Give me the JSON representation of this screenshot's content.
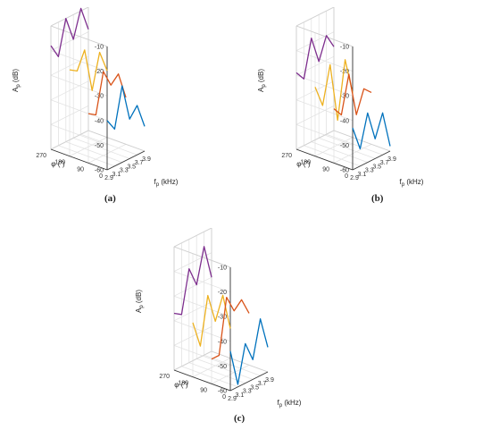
{
  "chart_data": [
    {
      "type": "line",
      "panel_caption": "(a)",
      "zlabel": "A",
      "zlabel_sub": "p",
      "zlabel_unit": " (dB)",
      "xlabel": "f",
      "xlabel_sub": "p",
      "xlabel_unit": " (kHz)",
      "ylabel": "φ (˚)",
      "x_ticks": [
        "2.9",
        "3.1",
        "3.3",
        "3.5",
        "3.7",
        "3.9"
      ],
      "y_ticks": [
        "0",
        "90",
        "180",
        "270"
      ],
      "z_ticks": [
        "-60",
        "-50",
        "-40",
        "-30",
        "-20",
        "-10"
      ],
      "xlim": [
        2.9,
        3.9
      ],
      "ylim": [
        0,
        270
      ],
      "zlim": [
        -60,
        -10
      ],
      "grid": true,
      "x": [
        2.9,
        3.1,
        3.3,
        3.5,
        3.7,
        3.9
      ],
      "series": [
        {
          "phi": 0,
          "color": "#0072bd",
          "z": [
            -40,
            -45,
            -29,
            -44,
            -40,
            -50
          ]
        },
        {
          "phi": 90,
          "color": "#d95319",
          "z": [
            -40,
            -42,
            -26,
            -33,
            -30,
            -41
          ]
        },
        {
          "phi": 180,
          "color": "#edb120",
          "z": [
            -25,
            -27,
            -20,
            -38,
            -24,
            -33
          ]
        },
        {
          "phi": 270,
          "color": "#7e2f8e",
          "z": [
            -18,
            -24,
            -10,
            -20,
            -9,
            -19
          ]
        }
      ]
    },
    {
      "type": "line",
      "panel_caption": "(b)",
      "zlabel": "A",
      "zlabel_sub": "p",
      "zlabel_unit": " (dB)",
      "xlabel": "f",
      "xlabel_sub": "p",
      "xlabel_unit": " (kHz)",
      "ylabel": "φ (˚)",
      "x_ticks": [
        "2.9",
        "3.1",
        "3.3",
        "3.5",
        "3.7",
        "3.9"
      ],
      "y_ticks": [
        "0",
        "90",
        "180",
        "270"
      ],
      "z_ticks": [
        "-60",
        "-50",
        "-40",
        "-30",
        "-20",
        "-10"
      ],
      "xlim": [
        2.9,
        3.9
      ],
      "ylim": [
        0,
        270
      ],
      "zlim": [
        -60,
        -10
      ],
      "grid": true,
      "x": [
        2.9,
        3.1,
        3.3,
        3.5,
        3.7,
        3.9
      ],
      "series": [
        {
          "phi": 0,
          "color": "#0072bd",
          "z": [
            -43,
            -53,
            -40,
            -52,
            -43,
            -58
          ]
        },
        {
          "phi": 90,
          "color": "#d95319",
          "z": [
            -38,
            -42,
            -27,
            -45,
            -36,
            -39
          ]
        },
        {
          "phi": 180,
          "color": "#edb120",
          "z": [
            -32,
            -41,
            -26,
            -50,
            -27,
            -42
          ]
        },
        {
          "phi": 270,
          "color": "#7e2f8e",
          "z": [
            -29,
            -33,
            -18,
            -29,
            -20,
            -26
          ]
        }
      ]
    },
    {
      "type": "line",
      "panel_caption": "(c)",
      "zlabel": "A",
      "zlabel_sub": "p",
      "zlabel_unit": " (dB)",
      "xlabel": "f",
      "xlabel_sub": "p",
      "xlabel_unit": " (kHz)",
      "ylabel": "φ (˚)",
      "x_ticks": [
        "2.9",
        "3.1",
        "3.3",
        "3.5",
        "3.7",
        "3.9"
      ],
      "y_ticks": [
        "0",
        "90",
        "180",
        "270"
      ],
      "z_ticks": [
        "-60",
        "-50",
        "-40",
        "-30",
        "-20",
        "-10"
      ],
      "xlim": [
        2.9,
        3.9
      ],
      "ylim": [
        0,
        270
      ],
      "zlim": [
        -60,
        -10
      ],
      "grid": true,
      "x": [
        2.9,
        3.1,
        3.3,
        3.5,
        3.7,
        3.9
      ],
      "series": [
        {
          "phi": 0,
          "color": "#0072bd",
          "z": [
            -44,
            -59,
            -44,
            -52,
            -37,
            -50
          ]
        },
        {
          "phi": 90,
          "color": "#d95319",
          "z": [
            -50,
            -50,
            -28,
            -35,
            -32,
            -39
          ]
        },
        {
          "phi": 180,
          "color": "#edb120",
          "z": [
            -38,
            -49,
            -30,
            -42,
            -33,
            -48
          ]
        },
        {
          "phi": 270,
          "color": "#7e2f8e",
          "z": [
            -37,
            -39,
            -22,
            -30,
            -16,
            -30
          ]
        }
      ]
    }
  ]
}
